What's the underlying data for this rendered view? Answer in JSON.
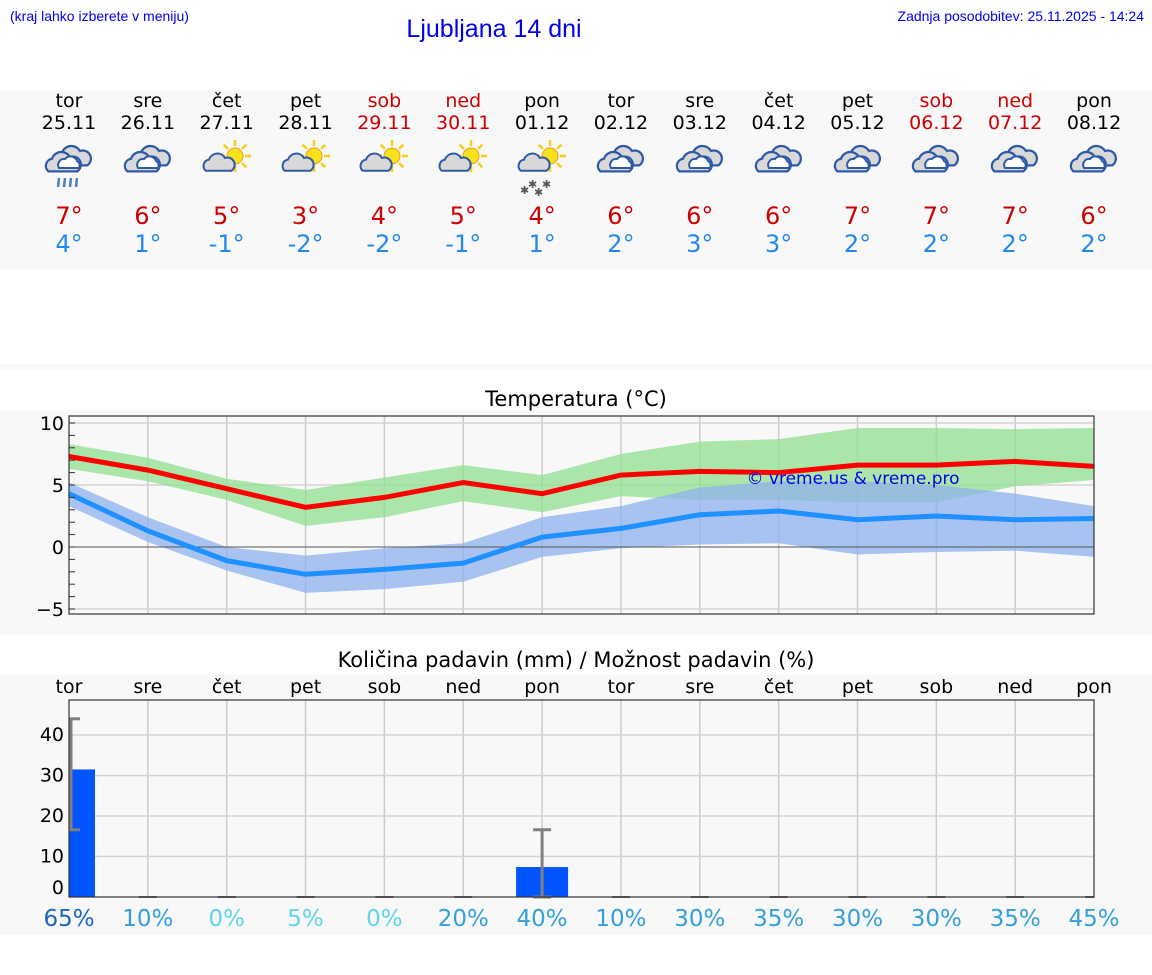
{
  "header": {
    "hint": "(kraj lahko izberete v meniju)",
    "title": "Ljubljana 14 dni",
    "updated": "Zadnja posodobitev: 25.11.2025 - 14:24"
  },
  "days": [
    {
      "name": "tor",
      "date": "25.11",
      "weekend": false,
      "icon": "rain-cloud-icon",
      "max": "7°",
      "min": "4°"
    },
    {
      "name": "sre",
      "date": "26.11",
      "weekend": false,
      "icon": "cloudy-icon",
      "max": "6°",
      "min": "1°"
    },
    {
      "name": "čet",
      "date": "27.11",
      "weekend": false,
      "icon": "partly-sunny-icon",
      "max": "5°",
      "min": "-1°"
    },
    {
      "name": "pet",
      "date": "28.11",
      "weekend": false,
      "icon": "partly-sunny-icon",
      "max": "3°",
      "min": "-2°"
    },
    {
      "name": "sob",
      "date": "29.11",
      "weekend": true,
      "icon": "partly-sunny-icon",
      "max": "4°",
      "min": "-2°"
    },
    {
      "name": "ned",
      "date": "30.11",
      "weekend": true,
      "icon": "partly-sunny-icon",
      "max": "5°",
      "min": "-1°"
    },
    {
      "name": "pon",
      "date": "01.12",
      "weekend": false,
      "icon": "partly-sunny-snow-icon",
      "max": "4°",
      "min": "1°"
    },
    {
      "name": "tor",
      "date": "02.12",
      "weekend": false,
      "icon": "cloudy-icon",
      "max": "6°",
      "min": "2°"
    },
    {
      "name": "sre",
      "date": "03.12",
      "weekend": false,
      "icon": "cloudy-icon",
      "max": "6°",
      "min": "3°"
    },
    {
      "name": "čet",
      "date": "04.12",
      "weekend": false,
      "icon": "cloudy-icon",
      "max": "6°",
      "min": "3°"
    },
    {
      "name": "pet",
      "date": "05.12",
      "weekend": false,
      "icon": "cloudy-icon",
      "max": "7°",
      "min": "2°"
    },
    {
      "name": "sob",
      "date": "06.12",
      "weekend": true,
      "icon": "cloudy-icon",
      "max": "7°",
      "min": "2°"
    },
    {
      "name": "ned",
      "date": "07.12",
      "weekend": true,
      "icon": "cloudy-icon",
      "max": "7°",
      "min": "2°"
    },
    {
      "name": "pon",
      "date": "08.12",
      "weekend": false,
      "icon": "cloudy-icon",
      "max": "6°",
      "min": "2°"
    }
  ],
  "colors": {
    "max": "#ff0000",
    "min": "#1e90ff",
    "max_band": "#aee9ae",
    "min_band": "#adc8f2",
    "bar": "#0055ff",
    "weekend": "#cc0000"
  },
  "chart_data": [
    {
      "type": "line",
      "title": "Temperatura (°C)",
      "ylim": [
        -5,
        10
      ],
      "yticks": [
        "10",
        "5",
        "0",
        "−5"
      ],
      "grid": true,
      "watermark": "© vreme.us & vreme.pro",
      "series": [
        {
          "values": [
            7.3,
            6.2,
            4.7,
            3.2,
            4.0,
            5.2,
            4.3,
            5.8,
            6.1,
            6.0,
            6.6,
            6.6,
            6.9,
            6.5
          ],
          "band_high": [
            8.3,
            7.2,
            5.5,
            4.6,
            5.6,
            6.6,
            5.8,
            7.5,
            8.5,
            8.7,
            9.6,
            9.6,
            9.5,
            9.6
          ],
          "band_low": [
            6.3,
            5.3,
            3.8,
            1.7,
            2.4,
            3.7,
            2.8,
            4.1,
            3.8,
            3.8,
            3.6,
            3.6,
            4.9,
            5.4
          ]
        },
        {
          "values": [
            4.3,
            1.3,
            -1.1,
            -2.2,
            -1.8,
            -1.3,
            0.8,
            1.5,
            2.6,
            2.9,
            2.2,
            2.5,
            2.2,
            2.3
          ],
          "band_high": [
            5.2,
            2.4,
            0.0,
            -0.7,
            -0.1,
            0.3,
            2.4,
            3.3,
            4.8,
            5.3,
            5.3,
            5.0,
            4.3,
            3.3
          ],
          "band_low": [
            3.3,
            0.4,
            -1.9,
            -3.7,
            -3.4,
            -2.8,
            -0.8,
            -0.1,
            0.2,
            0.3,
            -0.6,
            -0.4,
            -0.3,
            -0.8
          ]
        }
      ]
    },
    {
      "type": "bar",
      "title": "Količina padavin (mm) / Možnost padavin (%)",
      "ylim": [
        0,
        45
      ],
      "yticks": [
        "40",
        "30",
        "20",
        "10",
        "0"
      ],
      "grid": true,
      "categories": [
        "tor",
        "sre",
        "čet",
        "pet",
        "sob",
        "ned",
        "pon",
        "tor",
        "sre",
        "čet",
        "pet",
        "sob",
        "ned",
        "pon"
      ],
      "values": [
        31.5,
        0,
        0,
        0,
        0,
        0,
        7.4,
        0,
        0,
        0,
        0,
        0,
        0,
        0
      ],
      "error_high": [
        44,
        0,
        0,
        0,
        0,
        0,
        16.6,
        0,
        0,
        0,
        0,
        0,
        0,
        0
      ],
      "error_low": [
        16.6,
        0,
        0,
        0,
        0,
        0,
        0,
        0,
        0,
        0,
        0,
        0,
        0,
        0
      ],
      "probability": [
        "65%",
        "10%",
        "0%",
        "5%",
        "0%",
        "20%",
        "40%",
        "10%",
        "30%",
        "35%",
        "30%",
        "30%",
        "35%",
        "45%"
      ],
      "probability_colors": [
        "#1a66c2",
        "#33a0dd",
        "#5fd6ea",
        "#5fd6ea",
        "#5fd6ea",
        "#33a0dd",
        "#33a0dd",
        "#33a0dd",
        "#33a0dd",
        "#33a0dd",
        "#33a0dd",
        "#33a0dd",
        "#33a0dd",
        "#33a0dd"
      ]
    }
  ]
}
